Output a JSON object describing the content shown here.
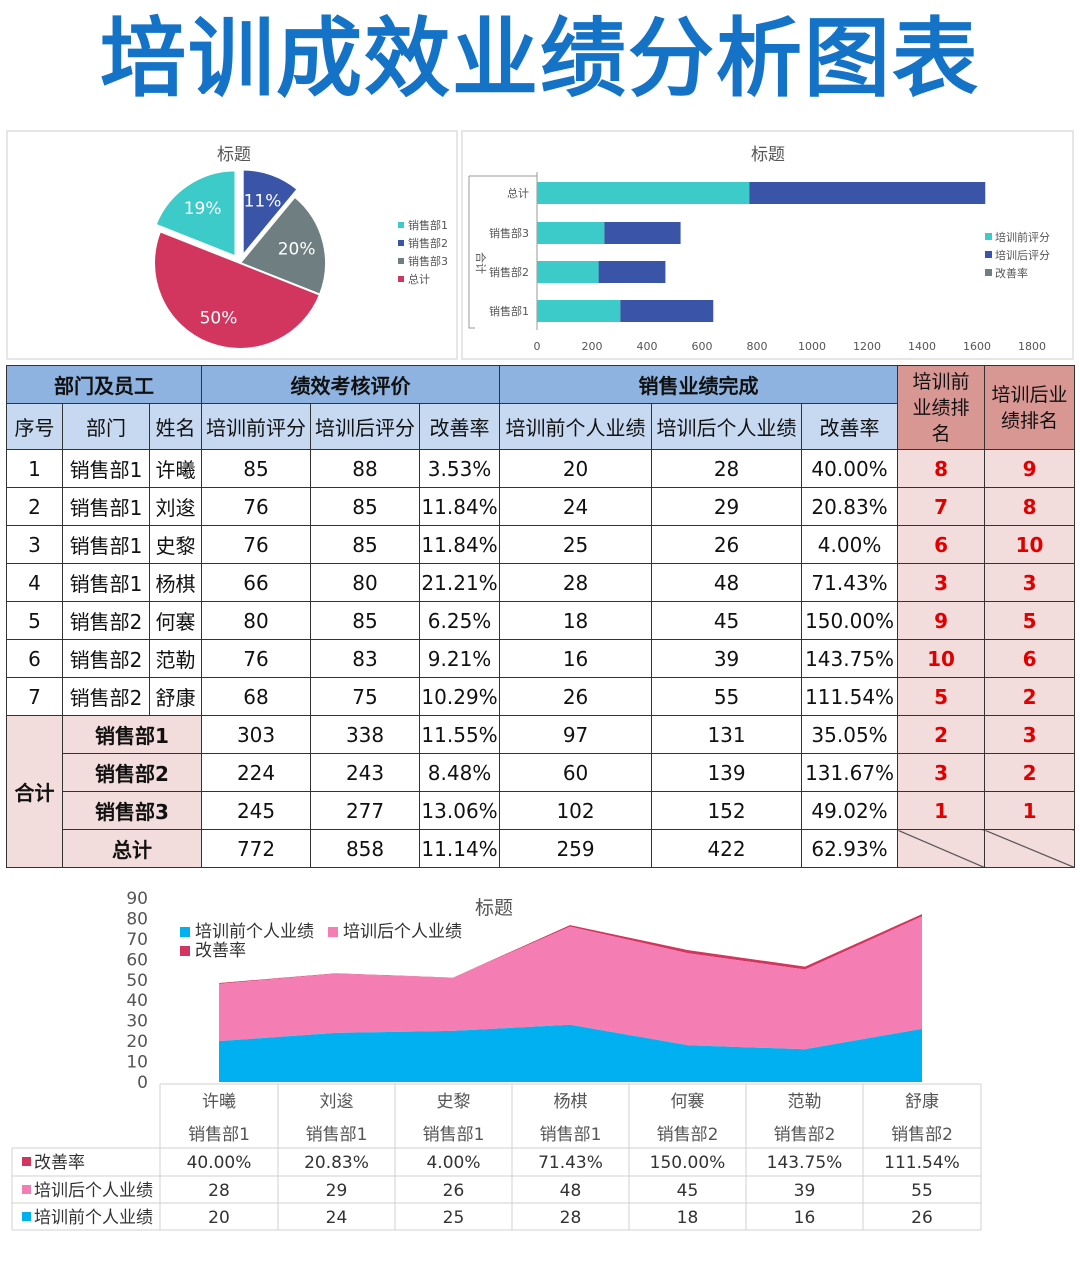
{
  "page_title": "培训成效业绩分析图表",
  "colors": {
    "title": "#1473c6",
    "teal": "#3ccbc9",
    "navy": "#3a55a8",
    "gray": "#6f7e80",
    "crimson": "#d2365f",
    "cyan": "#00b0f0",
    "pink": "#f47db4",
    "dark_pink": "#d2365f"
  },
  "chart_data": [
    {
      "type": "pie",
      "title": "标题",
      "labels": [
        "销售部1",
        "销售部2",
        "销售部3",
        "总计"
      ],
      "values": [
        19,
        11,
        20,
        50
      ],
      "value_labels": [
        "19%",
        "11%",
        "20%",
        "50%"
      ],
      "colors": [
        "#3ccbc9",
        "#3a55a8",
        "#6f7e80",
        "#d2365f"
      ],
      "legend": "right"
    },
    {
      "type": "bar",
      "orientation": "horizontal",
      "stacked": true,
      "title": "标题",
      "ylabel": "合计",
      "categories": [
        "销售部1",
        "销售部2",
        "销售部3",
        "总计"
      ],
      "series": [
        {
          "name": "培训前评分",
          "values": [
            303,
            224,
            245,
            772
          ],
          "color": "#3ccbc9"
        },
        {
          "name": "培训后评分",
          "values": [
            338,
            243,
            277,
            858
          ],
          "color": "#3a55a8"
        },
        {
          "name": "改善率",
          "values": [
            0.1155,
            0.0848,
            0.1306,
            0.1114
          ],
          "color": "#6f7e80"
        }
      ],
      "xlim": [
        0,
        1800
      ],
      "xticks": [
        "0",
        "200",
        "400",
        "600",
        "800",
        "1000",
        "1200",
        "1400",
        "1600",
        "1800"
      ],
      "legend": "right"
    },
    {
      "type": "area",
      "stacked": true,
      "title": "标题",
      "categories": [
        "许曦",
        "刘逡",
        "史黎",
        "杨棋",
        "何褰",
        "范勒",
        "舒康"
      ],
      "subcategories": [
        "销售部1",
        "销售部1",
        "销售部1",
        "销售部1",
        "销售部2",
        "销售部2",
        "销售部2"
      ],
      "series": [
        {
          "name": "培训前个人业绩",
          "values": [
            20,
            24,
            25,
            28,
            18,
            16,
            26
          ],
          "color": "#00b0f0"
        },
        {
          "name": "培训后个人业绩",
          "values": [
            28,
            29,
            26,
            48,
            45,
            39,
            55
          ],
          "color": "#f47db4"
        },
        {
          "name": "改善率",
          "values": [
            0.4,
            0.2083,
            0.04,
            0.7143,
            1.5,
            1.4375,
            1.1154
          ],
          "color": "#d2365f"
        }
      ],
      "ylim": [
        0,
        90
      ],
      "yticks": [
        "90",
        "80",
        "70",
        "60",
        "50",
        "40",
        "30",
        "20",
        "10",
        "0"
      ],
      "legend": "top-left",
      "data_table": [
        {
          "name": "改善率",
          "values": [
            "40.00%",
            "20.83%",
            "4.00%",
            "71.43%",
            "150.00%",
            "143.75%",
            "111.54%"
          ]
        },
        {
          "name": "培训后个人业绩",
          "values": [
            "28",
            "29",
            "26",
            "48",
            "45",
            "39",
            "55"
          ]
        },
        {
          "name": "培训前个人业绩",
          "values": [
            "20",
            "24",
            "25",
            "28",
            "18",
            "16",
            "26"
          ]
        }
      ]
    }
  ],
  "table": {
    "group_headers": {
      "dept": "部门及员工",
      "perf": "绩效考核评价",
      "sales": "销售业绩完成",
      "rank_before": "培训前业绩排名",
      "rank_after": "培训后业绩排名"
    },
    "col_headers": [
      "序号",
      "部门",
      "姓名",
      "培训前评分",
      "培训后评分",
      "改善率",
      "培训前个人业绩",
      "培训后个人业绩",
      "改善率"
    ],
    "rows": [
      [
        "1",
        "销售部1",
        "许曦",
        "85",
        "88",
        "3.53%",
        "20",
        "28",
        "40.00%",
        "8",
        "9"
      ],
      [
        "2",
        "销售部1",
        "刘逡",
        "76",
        "85",
        "11.84%",
        "24",
        "29",
        "20.83%",
        "7",
        "8"
      ],
      [
        "3",
        "销售部1",
        "史黎",
        "76",
        "85",
        "11.84%",
        "25",
        "26",
        "4.00%",
        "6",
        "10"
      ],
      [
        "4",
        "销售部1",
        "杨棋",
        "66",
        "80",
        "21.21%",
        "28",
        "48",
        "71.43%",
        "3",
        "3"
      ],
      [
        "5",
        "销售部2",
        "何褰",
        "80",
        "85",
        "6.25%",
        "18",
        "45",
        "150.00%",
        "9",
        "5"
      ],
      [
        "6",
        "销售部2",
        "范勒",
        "76",
        "83",
        "9.21%",
        "16",
        "39",
        "143.75%",
        "10",
        "6"
      ],
      [
        "7",
        "销售部2",
        "舒康",
        "68",
        "75",
        "10.29%",
        "26",
        "55",
        "111.54%",
        "5",
        "2"
      ]
    ],
    "summary_label": "合计",
    "summary": [
      [
        "销售部1",
        "303",
        "338",
        "11.55%",
        "97",
        "131",
        "35.05%",
        "2",
        "3"
      ],
      [
        "销售部2",
        "224",
        "243",
        "8.48%",
        "60",
        "139",
        "131.67%",
        "3",
        "2"
      ],
      [
        "销售部3",
        "245",
        "277",
        "13.06%",
        "102",
        "152",
        "49.02%",
        "1",
        "1"
      ]
    ],
    "total": [
      "总计",
      "772",
      "858",
      "11.14%",
      "259",
      "422",
      "62.93%"
    ]
  }
}
